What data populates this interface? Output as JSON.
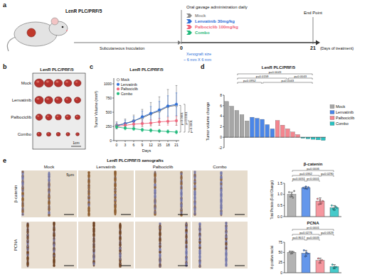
{
  "panel_labels": [
    "a",
    "b",
    "c",
    "d",
    "e"
  ],
  "schematic": {
    "model": "LenR PLC/PRF/5",
    "legend_title": "Oral gavage administration daily",
    "groups": [
      {
        "name": "Mock",
        "color": "#8c8c8c"
      },
      {
        "name": "Lenvatinib 30mg/kg",
        "color": "#2e6fd8"
      },
      {
        "name": "Palbociclib 100mg/kg",
        "color": "#f0647a"
      },
      {
        "name": "Combo",
        "color": "#1fb87a"
      }
    ],
    "inoculation": "Subcutaneous Inoculation",
    "size_label": "Xenograft size",
    "size_value": "~ 6 mm X 6 mm",
    "timeline": {
      "start": "0",
      "end": "21",
      "end_note": "End Point",
      "unit": "(Days of treatment)"
    }
  },
  "tumor_photo": {
    "title": "LenR PLC/PRF/5",
    "rows": [
      "Mock",
      "Lenvatinib",
      "Palbociclib",
      "Combo"
    ],
    "scale": "1cm"
  },
  "ihc": {
    "title": "LenR PLC/PRF/5 xenografts",
    "columns": [
      "Mock",
      "Lenvatinib",
      "Palbociclib",
      "Combo"
    ],
    "rows": [
      "β-catenin",
      "PCNA"
    ],
    "scale": "5μm"
  },
  "chart_data": [
    {
      "type": "line",
      "title": "LenR PLC/PRF/5",
      "x_label": "Days",
      "y_label": "Tumor Volume (mm³)",
      "x": [
        0,
        3,
        6,
        9,
        12,
        15,
        18,
        21
      ],
      "xlim": [
        -1,
        22
      ],
      "xticks": [
        0,
        3,
        6,
        9,
        12,
        15,
        18,
        21
      ],
      "ylim": [
        0,
        1100
      ],
      "yticks": [
        0,
        250,
        500,
        750,
        1000
      ],
      "grid": false,
      "legend": "upper left",
      "series": [
        {
          "name": "Mock",
          "color": "#555555",
          "marker": "open_circle",
          "values": [
            270,
            300,
            350,
            400,
            470,
            520,
            600,
            620
          ],
          "errors": [
            60,
            80,
            100,
            150,
            200,
            250,
            300,
            350
          ]
        },
        {
          "name": "Lenvatinib",
          "color": "#2e6fd8",
          "marker": "circle",
          "values": [
            260,
            300,
            340,
            420,
            480,
            540,
            610,
            640
          ],
          "errors": [
            50,
            60,
            80,
            100,
            120,
            150,
            180,
            200
          ]
        },
        {
          "name": "Palbociclib",
          "color": "#f0647a",
          "marker": "circle",
          "values": [
            250,
            270,
            290,
            300,
            310,
            330,
            340,
            350
          ],
          "errors": [
            40,
            40,
            50,
            50,
            60,
            60,
            70,
            80
          ]
        },
        {
          "name": "Combo",
          "color": "#1fb87a",
          "marker": "circle",
          "values": [
            240,
            220,
            210,
            190,
            180,
            170,
            160,
            150
          ],
          "errors": [
            30,
            30,
            30,
            30,
            30,
            30,
            30,
            30
          ]
        }
      ],
      "annotations": [
        {
          "label": "p<0.0001",
          "between": [
            0,
            3
          ]
        },
        {
          "label": "p<0.0001",
          "between": [
            1,
            3
          ]
        },
        {
          "label": "p<0.0001",
          "between": [
            2,
            3
          ]
        }
      ]
    },
    {
      "type": "bar",
      "title": "LenR PLC/PRF/5",
      "y_label": "Tumor volume change",
      "categories": [
        null,
        null,
        null,
        null,
        null,
        null,
        null,
        null,
        null,
        null,
        null,
        null,
        null,
        null,
        null,
        null,
        null,
        null,
        null,
        null
      ],
      "ylim": [
        -2,
        8
      ],
      "yticks": [
        -2,
        0,
        2,
        4,
        6,
        8
      ],
      "tick_labels": "y",
      "grid": false,
      "legend": "right",
      "series": [
        {
          "name": "Mock",
          "color": "#a6a6a6",
          "values": [
            6.8,
            5.9,
            5.1,
            4.3,
            3.1,
            null,
            null,
            null,
            null,
            null,
            null,
            null,
            null,
            null,
            null,
            null,
            null,
            null,
            null,
            null
          ]
        },
        {
          "name": "Lenvatinib",
          "color": "#4a86e8",
          "values": [
            null,
            null,
            null,
            null,
            null,
            3.8,
            3.6,
            3.4,
            2.4,
            1.6,
            null,
            null,
            null,
            null,
            null,
            null,
            null,
            null,
            null,
            null
          ]
        },
        {
          "name": "Palbociclib",
          "color": "#f4868f",
          "values": [
            null,
            null,
            null,
            null,
            null,
            null,
            null,
            null,
            null,
            null,
            3.2,
            2.3,
            1.6,
            1.0,
            0.5,
            null,
            null,
            null,
            null,
            null
          ]
        },
        {
          "name": "Combo",
          "color": "#27c1c1",
          "values": [
            null,
            null,
            null,
            null,
            null,
            null,
            null,
            null,
            null,
            null,
            null,
            null,
            null,
            null,
            null,
            -0.2,
            -0.3,
            -0.4,
            -0.5,
            -0.6
          ]
        }
      ],
      "brackets": [
        {
          "label": "p=0.0043",
          "between": [
            0,
            3
          ]
        },
        {
          "label": "p=0.0159",
          "between": [
            0,
            2
          ]
        },
        {
          "label": "p=0.0043",
          "between": [
            1,
            3
          ]
        },
        {
          "label": "p=0.0952",
          "between": [
            0,
            1
          ]
        },
        {
          "label": "p=0.0043",
          "between": [
            2,
            3
          ]
        }
      ]
    },
    {
      "type": "bar",
      "title": "β-catenin",
      "y_label": "Total Protein (Fold Change)",
      "categories": [
        null,
        null,
        null,
        null
      ],
      "values": [
        1.0,
        1.3,
        0.7,
        0.4
      ],
      "errors": [
        0.1,
        0.05,
        0.14,
        0.1
      ],
      "points": [
        [
          1.1,
          0.9,
          1.0,
          0.85,
          1.15
        ],
        [
          1.3,
          1.28,
          1.35,
          1.25,
          1.32
        ],
        [
          0.8,
          0.55,
          0.75,
          0.6,
          0.7
        ],
        [
          0.5,
          0.35,
          0.3,
          0.45,
          0.4
        ]
      ],
      "colors": [
        "#a6a6a6",
        "#4a86e8",
        "#f4868f",
        "#27c1c1"
      ],
      "ylim": [
        0,
        1.5
      ],
      "yticks": [
        {
          "value": 0,
          "label": "0.0"
        },
        {
          "value": 0.5,
          "label": "0.5"
        },
        {
          "value": 1,
          "label": "1.0"
        },
        {
          "value": 1.5,
          "label": "1.5"
        }
      ],
      "tick_labels": "y",
      "grid": false,
      "brackets": [
        {
          "label": "p=0.0006",
          "between": [
            0,
            3
          ]
        },
        {
          "label": "p=0.0362",
          "between": [
            0,
            2
          ]
        },
        {
          "label": "p=0.0290",
          "between": [
            2,
            3
          ]
        },
        {
          "label": "p=0.0051",
          "between": [
            0,
            1
          ]
        },
        {
          "label": "p<0.0001",
          "between": [
            1,
            2
          ]
        }
      ]
    },
    {
      "type": "bar",
      "title": "PCNA",
      "y_label": "% positive nuclei",
      "categories": [
        null,
        null,
        null,
        null
      ],
      "values": [
        50,
        48,
        30,
        15
      ],
      "errors": [
        3,
        7,
        6,
        5
      ],
      "points": [
        [
          52,
          47,
          50,
          51
        ],
        [
          55,
          40,
          50,
          47
        ],
        [
          35,
          24,
          30,
          31
        ],
        [
          20,
          12,
          14,
          14
        ]
      ],
      "colors": [
        "#a6a6a6",
        "#4a86e8",
        "#f4868f",
        "#27c1c1"
      ],
      "ylim": [
        0,
        75
      ],
      "yticks": [
        0,
        25,
        50,
        75
      ],
      "tick_labels": "y",
      "grid": false,
      "brackets": [
        {
          "label": "p<0.0001",
          "between": [
            0,
            3
          ]
        },
        {
          "label": "p=0.0276",
          "between": [
            0,
            2
          ]
        },
        {
          "label": "p=0.0329",
          "between": [
            2,
            3
          ]
        },
        {
          "label": "p=0.8017",
          "between": [
            0,
            1
          ]
        },
        {
          "label": "p=0.0005",
          "between": [
            1,
            2
          ]
        }
      ]
    }
  ]
}
